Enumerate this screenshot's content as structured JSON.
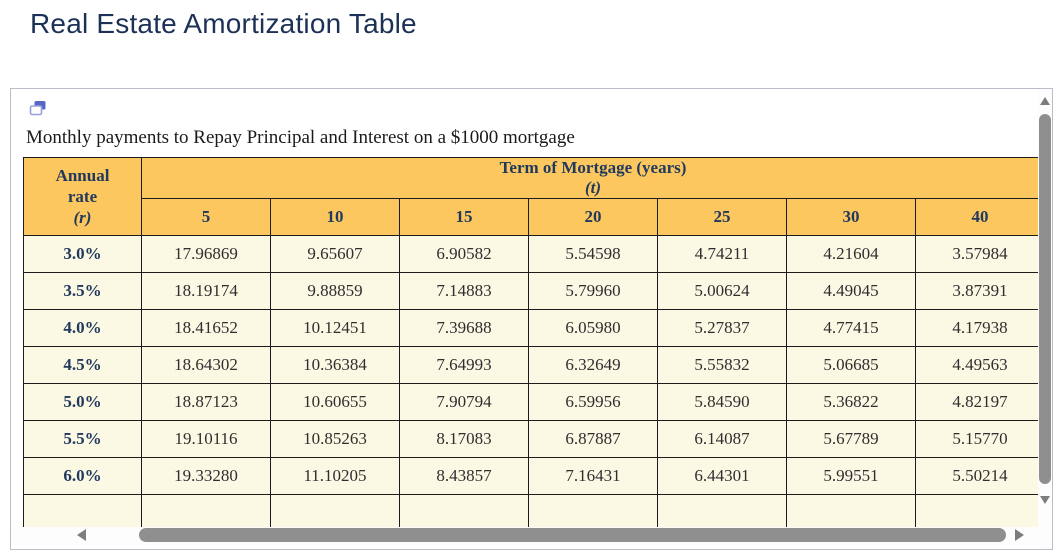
{
  "page_title": "Real Estate Amortization Table",
  "panel": {
    "caption": "Monthly payments to Repay Principal and Interest on a $1000 mortgage",
    "icon": "duplicate-windows-icon"
  },
  "table": {
    "corner_header": {
      "line1": "Annual",
      "line2": "rate",
      "line3": "(r)"
    },
    "group_header": {
      "line1": "Term of Mortgage (years)",
      "line2": "(t)"
    },
    "columns": [
      "5",
      "10",
      "15",
      "20",
      "25",
      "30",
      "40"
    ],
    "rows": [
      {
        "rate": "3.0%",
        "values": [
          "17.96869",
          "9.65607",
          "6.90582",
          "5.54598",
          "4.74211",
          "4.21604",
          "3.57984"
        ]
      },
      {
        "rate": "3.5%",
        "values": [
          "18.19174",
          "9.88859",
          "7.14883",
          "5.79960",
          "5.00624",
          "4.49045",
          "3.87391"
        ]
      },
      {
        "rate": "4.0%",
        "values": [
          "18.41652",
          "10.12451",
          "7.39688",
          "6.05980",
          "5.27837",
          "4.77415",
          "4.17938"
        ]
      },
      {
        "rate": "4.5%",
        "values": [
          "18.64302",
          "10.36384",
          "7.64993",
          "6.32649",
          "5.55832",
          "5.06685",
          "4.49563"
        ]
      },
      {
        "rate": "5.0%",
        "values": [
          "18.87123",
          "10.60655",
          "7.90794",
          "6.59956",
          "5.84590",
          "5.36822",
          "4.82197"
        ]
      },
      {
        "rate": "5.5%",
        "values": [
          "19.10116",
          "10.85263",
          "8.17083",
          "6.87887",
          "6.14087",
          "5.67789",
          "5.15770"
        ]
      },
      {
        "rate": "6.0%",
        "values": [
          "19.33280",
          "11.10205",
          "8.43857",
          "7.16431",
          "6.44301",
          "5.99551",
          "5.50214"
        ]
      }
    ],
    "has_partial_row": true
  },
  "icons": {
    "scroll_up": "triangle-up",
    "scroll_down": "triangle-down",
    "scroll_left": "triangle-left",
    "scroll_right": "triangle-right"
  },
  "colors": {
    "header_bg": "#fcc75e",
    "body_bg": "#fbf8e4",
    "title_text": "#1d3156",
    "header_text": "#21395c",
    "cell_border": "#1c1c1c",
    "panel_border": "#b9bdc6",
    "scrollbar_thumb": "#8f8f8f"
  }
}
